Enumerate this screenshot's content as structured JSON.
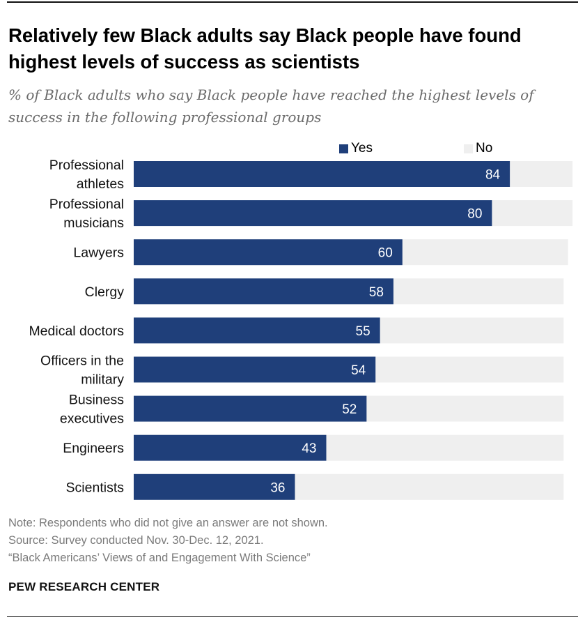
{
  "title": "Relatively few Black adults say Black people have found highest levels of success as scientists",
  "subtitle": "% of Black adults who say Black people have reached the highest levels of success in the following professional groups",
  "legend": {
    "yes_label": "Yes",
    "no_label": "No"
  },
  "colors": {
    "yes": "#1f3f7a",
    "no": "#efefef",
    "label_on_bar": "#ffffff",
    "category_text": "#111111"
  },
  "chart_data": {
    "type": "bar",
    "orientation": "horizontal",
    "stacked": true,
    "categories": [
      [
        "Professional",
        "athletes"
      ],
      [
        "Professional",
        "musicians"
      ],
      [
        "Lawyers"
      ],
      [
        "Clergy"
      ],
      [
        "Medical doctors"
      ],
      [
        "Officers in the",
        "military"
      ],
      [
        "Business",
        "executives"
      ],
      [
        "Engineers"
      ],
      [
        "Scientists"
      ]
    ],
    "series": [
      {
        "name": "Yes",
        "values": [
          84,
          80,
          60,
          58,
          55,
          54,
          52,
          43,
          36
        ],
        "data_labels": [
          "84",
          "80",
          "60",
          "58",
          "55",
          "54",
          "52",
          "43",
          "36"
        ]
      },
      {
        "name": "No",
        "values": [
          14,
          18,
          37,
          38,
          41,
          42,
          44,
          53,
          60
        ]
      }
    ],
    "xlim": [
      0,
      100
    ],
    "grid": false,
    "legend_position": "top-right"
  },
  "notes": [
    "Note: Respondents who did not give an answer are not shown.",
    "Source: Survey conducted Nov. 30-Dec. 12, 2021.",
    "“Black Americans’ Views of and Engagement With Science”"
  ],
  "brand": "PEW RESEARCH CENTER"
}
